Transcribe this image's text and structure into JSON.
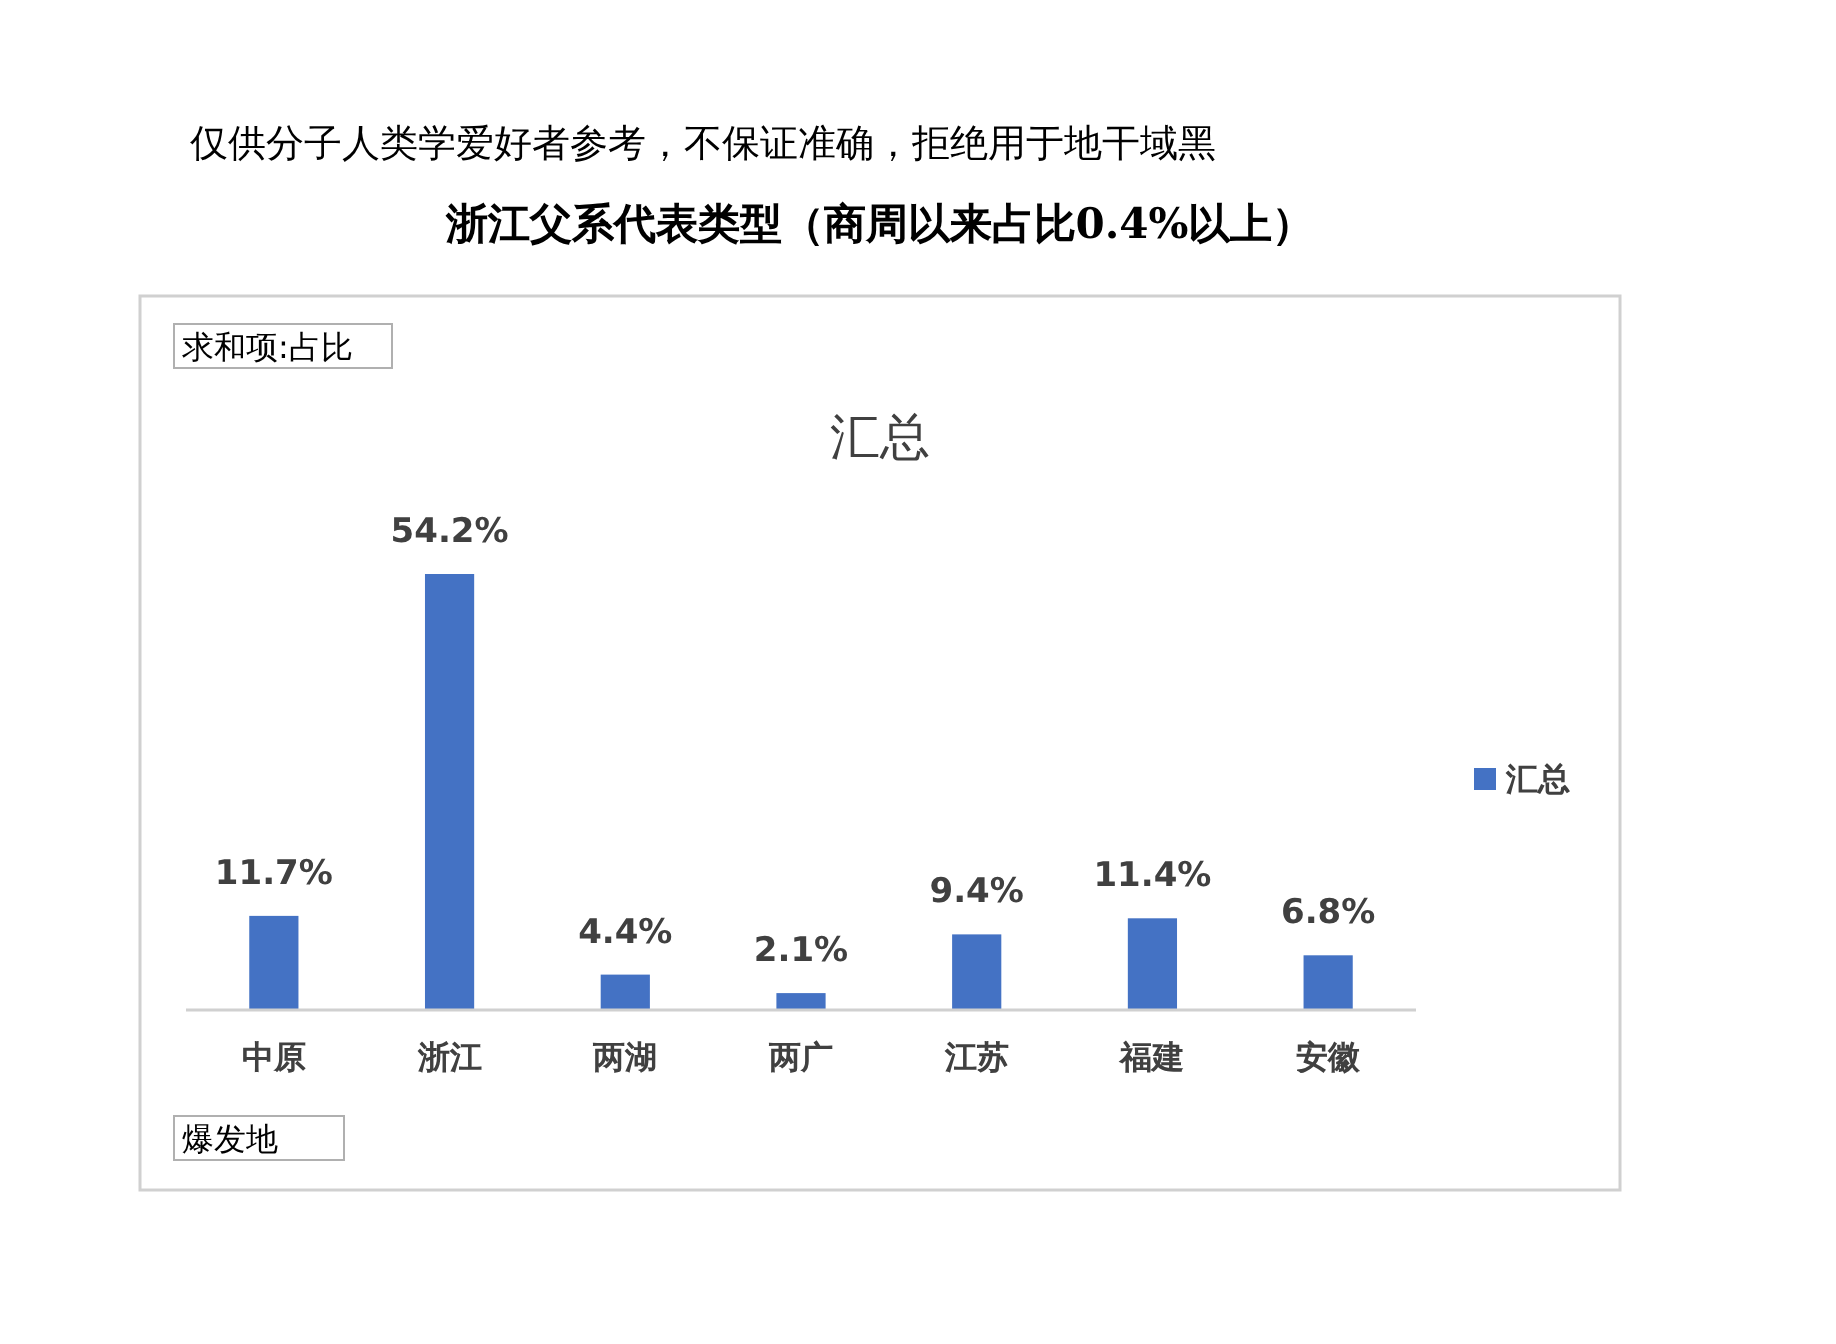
{
  "chart_data": {
    "type": "bar",
    "title": "浙江父系代表类型（商周以来占比0.4%以上）",
    "subtitle": "汇总",
    "annotations": [
      "仅供分子人类学爱好者参考，不保证准确，拒绝用于地干域黑",
      "求和项:占比",
      "爆发地"
    ],
    "categories": [
      "中原",
      "浙江",
      "两湖",
      "两广",
      "江苏",
      "福建",
      "安徽"
    ],
    "series": [
      {
        "name": "汇总",
        "color": "#4472c4",
        "values": [
          11.7,
          54.2,
          4.4,
          2.1,
          9.4,
          11.4,
          6.8
        ],
        "value_labels": [
          "11.7%",
          "54.2%",
          "4.4%",
          "2.1%",
          "9.4%",
          "11.4%",
          "6.8%"
        ]
      }
    ],
    "legend": "right"
  }
}
